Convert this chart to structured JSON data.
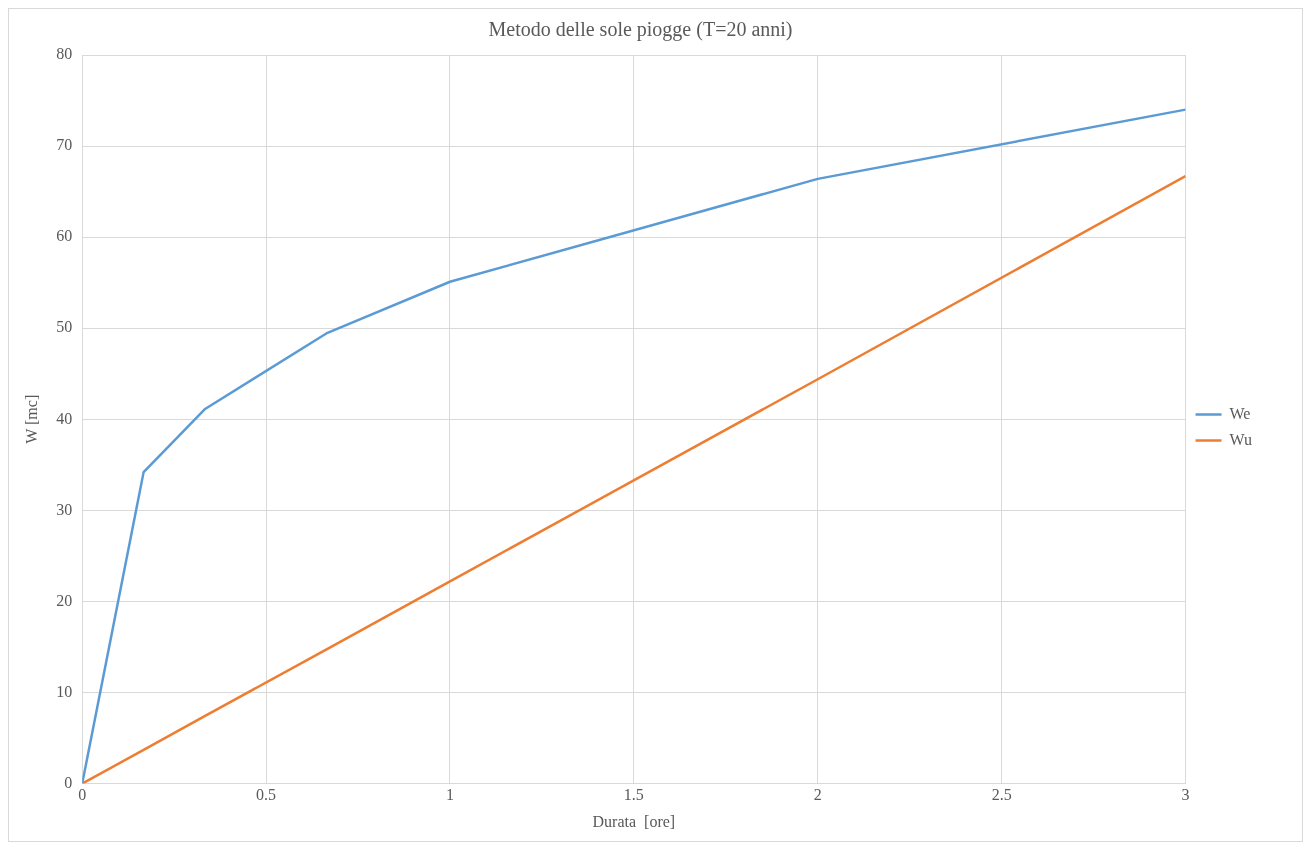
{
  "chart_data": {
    "type": "line",
    "title": "Metodo delle sole piogge (T=20 anni)",
    "xlabel": "Durata  [ore]",
    "ylabel": "W [mc]",
    "x": [
      0,
      0.167,
      0.333,
      0.667,
      1,
      2,
      3
    ],
    "series": [
      {
        "name": "We",
        "color": "#5b9bd5",
        "values": [
          0,
          34.2,
          41.1,
          49.5,
          55.1,
          66.4,
          74.0
        ]
      },
      {
        "name": "Wu",
        "color": "#ed7d31",
        "values": [
          0,
          3.7,
          7.4,
          14.8,
          22.2,
          44.4,
          66.7
        ]
      }
    ],
    "xlim": [
      0,
      3
    ],
    "xticks": [
      0,
      0.5,
      1,
      1.5,
      2,
      2.5,
      3
    ],
    "ylim": [
      0,
      80
    ],
    "yticks": [
      0,
      10,
      20,
      30,
      40,
      50,
      60,
      70,
      80
    ],
    "grid": true,
    "legend": "right",
    "marker": "none",
    "line_style": "solid"
  }
}
